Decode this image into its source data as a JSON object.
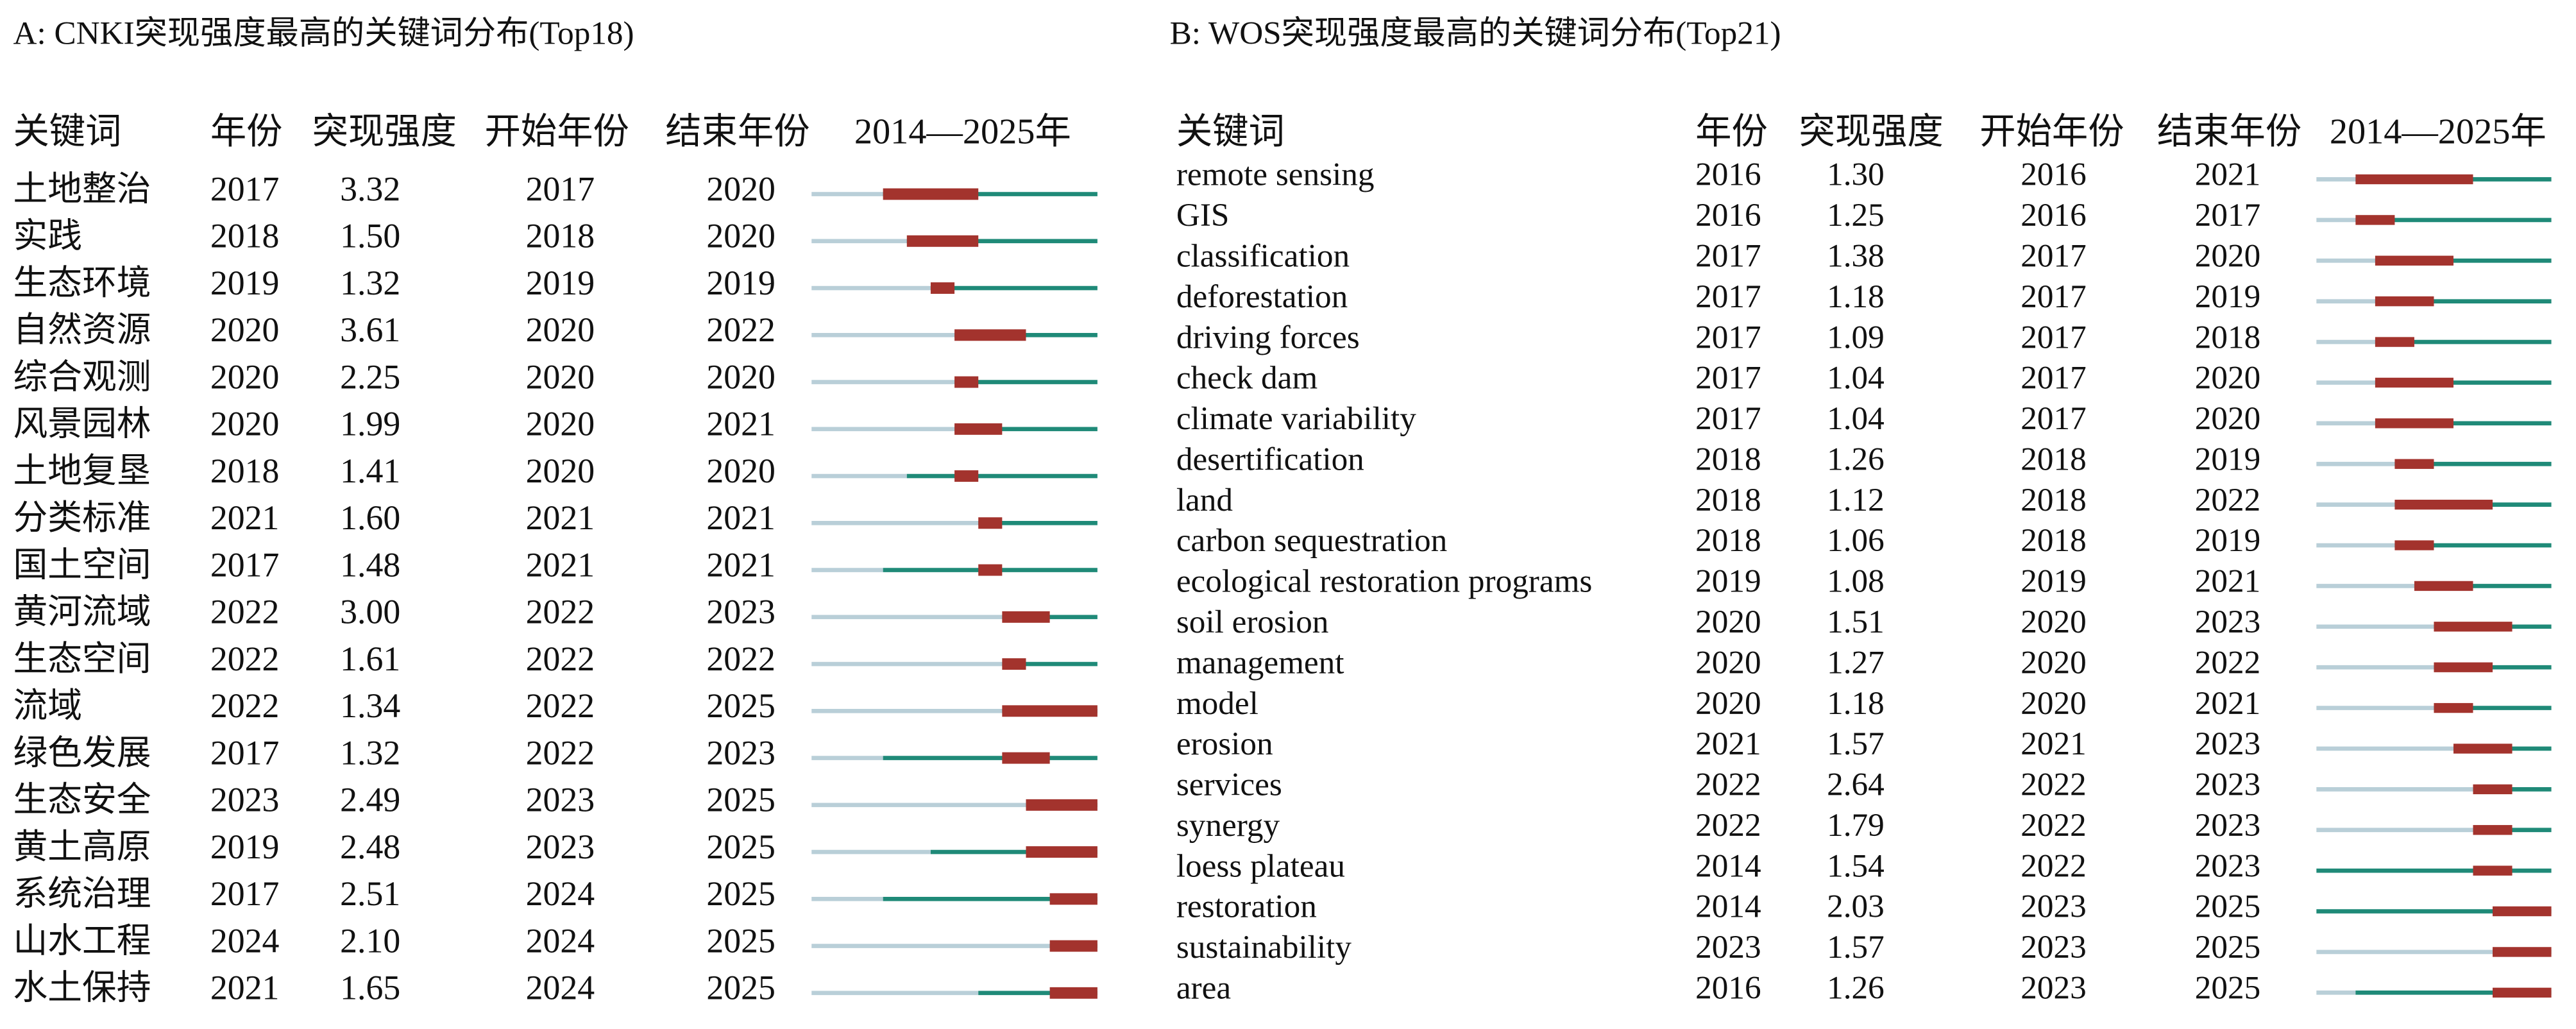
{
  "panels": [
    {
      "title": "A: CNKI突现强度最高的关键词分布(Top18)",
      "headers": [
        "关键词",
        "年份",
        "突现强度",
        "开始年份",
        "结束年份",
        "2014—2025年"
      ],
      "rows": [
        [
          "土地整治",
          2017,
          "3.32",
          2017,
          2020
        ],
        [
          "实践",
          2018,
          "1.50",
          2018,
          2020
        ],
        [
          "生态环境",
          2019,
          "1.32",
          2019,
          2019
        ],
        [
          "自然资源",
          2020,
          "3.61",
          2020,
          2022
        ],
        [
          "综合观测",
          2020,
          "2.25",
          2020,
          2020
        ],
        [
          "风景园林",
          2020,
          "1.99",
          2020,
          2021
        ],
        [
          "土地复垦",
          2018,
          "1.41",
          2020,
          2020
        ],
        [
          "分类标准",
          2021,
          "1.60",
          2021,
          2021
        ],
        [
          "国土空间",
          2017,
          "1.48",
          2021,
          2021
        ],
        [
          "黄河流域",
          2022,
          "3.00",
          2022,
          2023
        ],
        [
          "生态空间",
          2022,
          "1.61",
          2022,
          2022
        ],
        [
          "流域",
          2022,
          "1.34",
          2022,
          2025
        ],
        [
          "绿色发展",
          2017,
          "1.32",
          2022,
          2023
        ],
        [
          "生态安全",
          2023,
          "2.49",
          2023,
          2025
        ],
        [
          "黄土高原",
          2019,
          "2.48",
          2023,
          2025
        ],
        [
          "系统治理",
          2017,
          "2.51",
          2024,
          2025
        ],
        [
          "山水工程",
          2024,
          "2.10",
          2024,
          2025
        ],
        [
          "水土保持",
          2021,
          "1.65",
          2024,
          2025
        ]
      ]
    },
    {
      "title": "B: WOS突现强度最高的关键词分布(Top21)",
      "headers": [
        "关键词",
        "年份",
        "突现强度",
        "开始年份",
        "结束年份",
        "2014—2025年"
      ],
      "rows": [
        [
          "remote sensing",
          2016,
          "1.30",
          2016,
          2021
        ],
        [
          "GIS",
          2016,
          "1.25",
          2016,
          2017
        ],
        [
          "classification",
          2017,
          "1.38",
          2017,
          2020
        ],
        [
          "deforestation",
          2017,
          "1.18",
          2017,
          2019
        ],
        [
          "driving forces",
          2017,
          "1.09",
          2017,
          2018
        ],
        [
          "check dam",
          2017,
          "1.04",
          2017,
          2020
        ],
        [
          "climate variability",
          2017,
          "1.04",
          2017,
          2020
        ],
        [
          "desertification",
          2018,
          "1.26",
          2018,
          2019
        ],
        [
          "land",
          2018,
          "1.12",
          2018,
          2022
        ],
        [
          "carbon sequestration",
          2018,
          "1.06",
          2018,
          2019
        ],
        [
          "ecological restoration programs",
          2019,
          "1.08",
          2019,
          2021
        ],
        [
          "soil erosion",
          2020,
          "1.51",
          2020,
          2023
        ],
        [
          "management",
          2020,
          "1.27",
          2020,
          2022
        ],
        [
          "model",
          2020,
          "1.18",
          2020,
          2021
        ],
        [
          "erosion",
          2021,
          "1.57",
          2021,
          2023
        ],
        [
          "services",
          2022,
          "2.64",
          2022,
          2023
        ],
        [
          "synergy",
          2022,
          "1.79",
          2022,
          2023
        ],
        [
          "loess plateau",
          2014,
          "1.54",
          2022,
          2023
        ],
        [
          "restoration",
          2014,
          "2.03",
          2023,
          2025
        ],
        [
          "sustainability",
          2023,
          "1.57",
          2023,
          2025
        ],
        [
          "area",
          2016,
          "1.26",
          2023,
          2025
        ]
      ]
    }
  ]
}
